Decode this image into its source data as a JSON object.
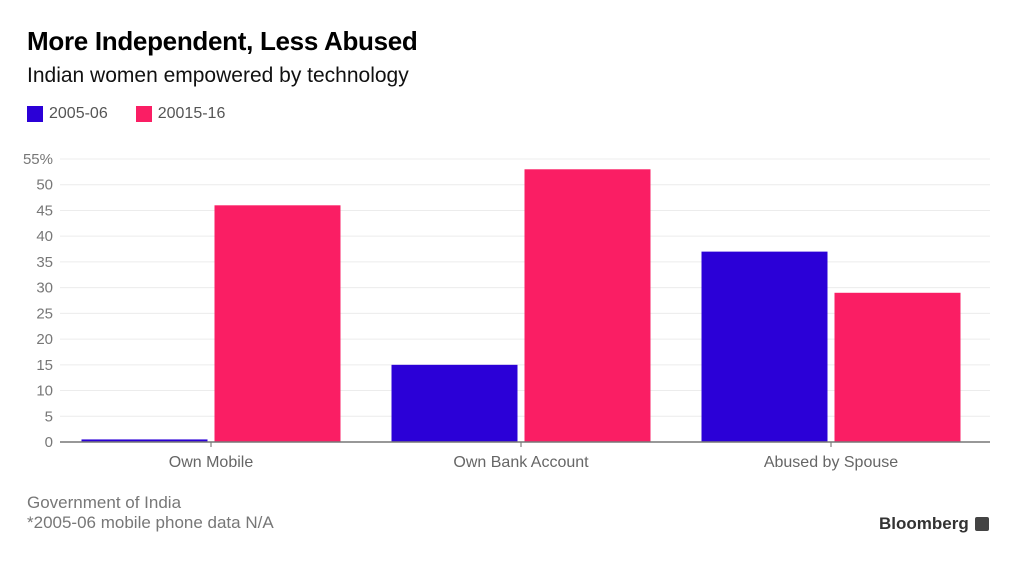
{
  "chart_data": {
    "type": "bar",
    "title": "More Independent, Less Abused",
    "subtitle": "Indian women empowered by technology",
    "categories": [
      "Own Mobile",
      "Own Bank Account",
      "Abused by Spouse"
    ],
    "series": [
      {
        "name": "2005-06",
        "color": "#2b00d7",
        "values": [
          0.5,
          15,
          37
        ]
      },
      {
        "name": "20015-16",
        "color": "#fa1e64",
        "values": [
          46,
          53,
          29
        ]
      }
    ],
    "xlabel": "",
    "ylabel": "",
    "ylim": [
      0,
      55
    ],
    "yticks": [
      0,
      5,
      10,
      15,
      20,
      25,
      30,
      35,
      40,
      45,
      50,
      55
    ],
    "ytick_labels": [
      "0",
      "5",
      "10",
      "15",
      "20",
      "25",
      "30",
      "35",
      "40",
      "45",
      "50",
      "55%"
    ],
    "grid": true,
    "legend_position": "top-left",
    "source": "Government of India",
    "note": "*2005-06 mobile phone data N/A"
  },
  "brand": "Bloomberg"
}
